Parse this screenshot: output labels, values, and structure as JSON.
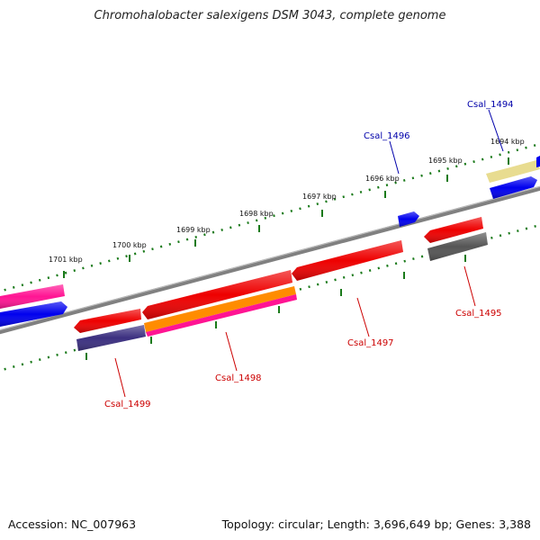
{
  "title": "Chromohalobacter salexigens DSM 3043, complete genome",
  "footer": {
    "accession": "Accession: NC_007963",
    "info": "Topology: circular; Length: 3,696,649 bp; Genes: 3,388"
  },
  "scale": {
    "labels": [
      "1694 kbp",
      "1695 kbp",
      "1696 kbp",
      "1697 kbp",
      "1698 kbp",
      "1699 kbp",
      "1700 kbp",
      "1701 kbp"
    ]
  },
  "genes": [
    {
      "name": "Csal_1494",
      "color": "#0000aa",
      "strand": "forward"
    },
    {
      "name": "Csal_1495",
      "color": "#cc0000",
      "strand": "reverse"
    },
    {
      "name": "Csal_1496",
      "color": "#0000aa",
      "strand": "forward"
    },
    {
      "name": "Csal_1497",
      "color": "#cc0000",
      "strand": "reverse"
    },
    {
      "name": "Csal_1498",
      "color": "#cc0000",
      "strand": "reverse"
    },
    {
      "name": "Csal_1499",
      "color": "#cc0000",
      "strand": "reverse"
    }
  ],
  "colors": {
    "backbone": "#808080",
    "tick": "#1a7a1a",
    "red": "#ee0000",
    "blue": "#0000ee",
    "pink": "#ff1493",
    "orange": "#ff8c00",
    "yellow": "#e8dc90",
    "gray": "#555555",
    "navy": "#3b2f80"
  }
}
